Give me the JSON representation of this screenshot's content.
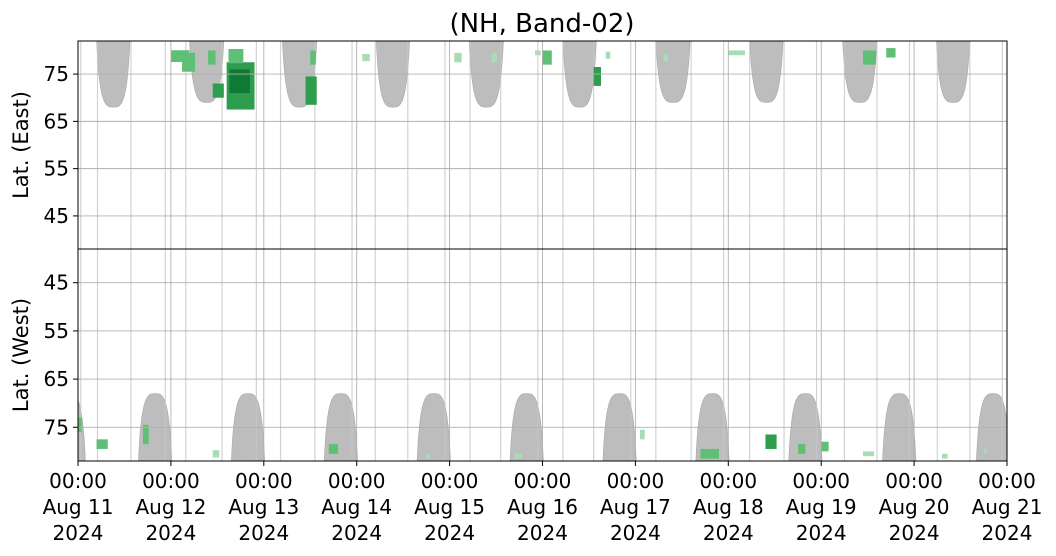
{
  "chart_data": {
    "type": "heatmap",
    "title": "(NH, Band-02)",
    "x": {
      "label": "",
      "range": [
        "2024-08-11T00:00",
        "2024-08-21T00:00"
      ],
      "ticks": [
        [
          "00:00",
          "Aug 11",
          "2024"
        ],
        [
          "00:00",
          "Aug 12",
          "2024"
        ],
        [
          "00:00",
          "Aug 13",
          "2024"
        ],
        [
          "00:00",
          "Aug 14",
          "2024"
        ],
        [
          "00:00",
          "Aug 15",
          "2024"
        ],
        [
          "00:00",
          "Aug 16",
          "2024"
        ],
        [
          "00:00",
          "Aug 17",
          "2024"
        ],
        [
          "00:00",
          "Aug 18",
          "2024"
        ],
        [
          "00:00",
          "Aug 19",
          "2024"
        ],
        [
          "00:00",
          "Aug 20",
          "2024"
        ],
        [
          "00:00",
          "Aug 21",
          "2024"
        ]
      ]
    },
    "panels": [
      {
        "name": "east",
        "ylabel": "Lat. (East)",
        "yrange": [
          38,
          82
        ],
        "y_inverted": false,
        "yticks": [
          45,
          55,
          65,
          75
        ],
        "grid": true,
        "sunlit_color": "#bdbdbd",
        "sunlit_arches": [
          {
            "start_day": 0.2,
            "end_day": 0.56,
            "min_lat": 68
          },
          {
            "start_day": 1.2,
            "end_day": 1.57,
            "min_lat": 69
          },
          {
            "start_day": 2.2,
            "end_day": 2.57,
            "min_lat": 68
          },
          {
            "start_day": 3.21,
            "end_day": 3.57,
            "min_lat": 68
          },
          {
            "start_day": 4.21,
            "end_day": 4.58,
            "min_lat": 68
          },
          {
            "start_day": 5.22,
            "end_day": 5.58,
            "min_lat": 68
          },
          {
            "start_day": 6.22,
            "end_day": 6.59,
            "min_lat": 69
          },
          {
            "start_day": 7.23,
            "end_day": 7.59,
            "min_lat": 69
          },
          {
            "start_day": 8.23,
            "end_day": 8.6,
            "min_lat": 69
          },
          {
            "start_day": 9.24,
            "end_day": 9.6,
            "min_lat": 69
          }
        ],
        "event_patches": [
          {
            "day": 1.0,
            "lat": 78.8,
            "w": 0.2,
            "h": 2.5,
            "level": 2
          },
          {
            "day": 1.12,
            "lat": 77.5,
            "w": 0.14,
            "h": 4,
            "level": 2
          },
          {
            "day": 1.4,
            "lat": 78.5,
            "w": 0.08,
            "h": 3,
            "level": 2
          },
          {
            "day": 1.45,
            "lat": 71.5,
            "w": 0.12,
            "h": 3,
            "level": 3
          },
          {
            "day": 1.6,
            "lat": 72.5,
            "w": 0.3,
            "h": 10,
            "level": 3
          },
          {
            "day": 1.63,
            "lat": 73.5,
            "w": 0.22,
            "h": 5,
            "level": 4
          },
          {
            "day": 1.62,
            "lat": 78.8,
            "w": 0.16,
            "h": 3,
            "level": 2
          },
          {
            "day": 2.45,
            "lat": 71.5,
            "w": 0.12,
            "h": 6,
            "level": 3
          },
          {
            "day": 2.5,
            "lat": 78.5,
            "w": 0.06,
            "h": 3,
            "level": 2
          },
          {
            "day": 3.06,
            "lat": 78.5,
            "w": 0.08,
            "h": 1.5,
            "level": 1
          },
          {
            "day": 4.05,
            "lat": 78.5,
            "w": 0.08,
            "h": 2,
            "level": 1
          },
          {
            "day": 4.45,
            "lat": 78.5,
            "w": 0.06,
            "h": 2,
            "level": 1
          },
          {
            "day": 4.92,
            "lat": 79.5,
            "w": 0.06,
            "h": 1,
            "level": 1
          },
          {
            "day": 5.0,
            "lat": 78.5,
            "w": 0.1,
            "h": 3,
            "level": 2
          },
          {
            "day": 5.55,
            "lat": 74.5,
            "w": 0.08,
            "h": 4,
            "level": 3
          },
          {
            "day": 5.68,
            "lat": 79.0,
            "w": 0.05,
            "h": 1.5,
            "level": 1
          },
          {
            "day": 6.3,
            "lat": 78.5,
            "w": 0.05,
            "h": 1.5,
            "level": 1
          },
          {
            "day": 7.0,
            "lat": 79.5,
            "w": 0.18,
            "h": 1,
            "level": 1
          },
          {
            "day": 8.45,
            "lat": 78.5,
            "w": 0.14,
            "h": 3,
            "level": 2
          },
          {
            "day": 8.7,
            "lat": 79.5,
            "w": 0.1,
            "h": 2,
            "level": 2
          }
        ]
      },
      {
        "name": "west",
        "ylabel": "Lat. (West)",
        "yrange": [
          82,
          38
        ],
        "y_inverted": true,
        "yticks": [
          75,
          65,
          55,
          45
        ],
        "grid": true,
        "sunlit_color": "#bdbdbd",
        "sunlit_arches": [
          {
            "start_day": -0.28,
            "end_day": 0.08,
            "min_lat": 68
          },
          {
            "start_day": 0.65,
            "end_day": 1.01,
            "min_lat": 68
          },
          {
            "start_day": 1.65,
            "end_day": 2.01,
            "min_lat": 68
          },
          {
            "start_day": 2.65,
            "end_day": 3.01,
            "min_lat": 68
          },
          {
            "start_day": 3.65,
            "end_day": 4.01,
            "min_lat": 68
          },
          {
            "start_day": 4.65,
            "end_day": 5.01,
            "min_lat": 68
          },
          {
            "start_day": 5.65,
            "end_day": 6.01,
            "min_lat": 68
          },
          {
            "start_day": 6.65,
            "end_day": 7.01,
            "min_lat": 68
          },
          {
            "start_day": 7.65,
            "end_day": 8.01,
            "min_lat": 68
          },
          {
            "start_day": 8.66,
            "end_day": 9.02,
            "min_lat": 68
          },
          {
            "start_day": 9.67,
            "end_day": 10.03,
            "min_lat": 68
          }
        ],
        "event_patches": [
          {
            "day": 0.0,
            "lat": 74.5,
            "w": 0.04,
            "h": 3,
            "level": 2
          },
          {
            "day": 0.2,
            "lat": 78.5,
            "w": 0.12,
            "h": 2,
            "level": 2
          },
          {
            "day": 0.7,
            "lat": 76.5,
            "w": 0.06,
            "h": 4,
            "level": 2
          },
          {
            "day": 1.45,
            "lat": 80.5,
            "w": 0.07,
            "h": 1.5,
            "level": 1
          },
          {
            "day": 2.7,
            "lat": 79.5,
            "w": 0.1,
            "h": 2,
            "level": 2
          },
          {
            "day": 3.75,
            "lat": 81.0,
            "w": 0.04,
            "h": 1,
            "level": 1
          },
          {
            "day": 4.7,
            "lat": 81.0,
            "w": 0.08,
            "h": 1,
            "level": 1
          },
          {
            "day": 6.05,
            "lat": 76.5,
            "w": 0.05,
            "h": 2,
            "level": 1
          },
          {
            "day": 6.7,
            "lat": 80.5,
            "w": 0.2,
            "h": 2,
            "level": 2
          },
          {
            "day": 7.4,
            "lat": 78.0,
            "w": 0.12,
            "h": 3,
            "level": 3
          },
          {
            "day": 7.75,
            "lat": 79.5,
            "w": 0.08,
            "h": 2,
            "level": 2
          },
          {
            "day": 8.0,
            "lat": 79.0,
            "w": 0.08,
            "h": 2,
            "level": 2
          },
          {
            "day": 8.45,
            "lat": 80.5,
            "w": 0.12,
            "h": 1,
            "level": 1
          },
          {
            "day": 9.3,
            "lat": 81.0,
            "w": 0.06,
            "h": 1,
            "level": 1
          },
          {
            "day": 9.75,
            "lat": 80.0,
            "w": 0.03,
            "h": 1,
            "level": 1
          }
        ]
      }
    ],
    "event_colors": {
      "1": "#a8dcb4",
      "2": "#5fbf74",
      "3": "#2e9e4e",
      "4": "#107a35"
    },
    "scanline_color": "#c8c8c8",
    "scanlines_days": [
      0.03,
      0.21,
      0.57,
      0.94,
      1.16,
      1.55,
      1.92,
      2.18,
      2.55,
      2.95,
      3.2,
      3.55,
      3.95,
      4.22,
      4.55,
      4.95,
      5.22,
      5.55,
      5.95,
      6.22,
      6.6,
      6.95,
      7.23,
      7.6,
      7.95,
      8.25,
      8.6,
      8.95,
      9.25,
      9.6,
      9.95
    ]
  }
}
